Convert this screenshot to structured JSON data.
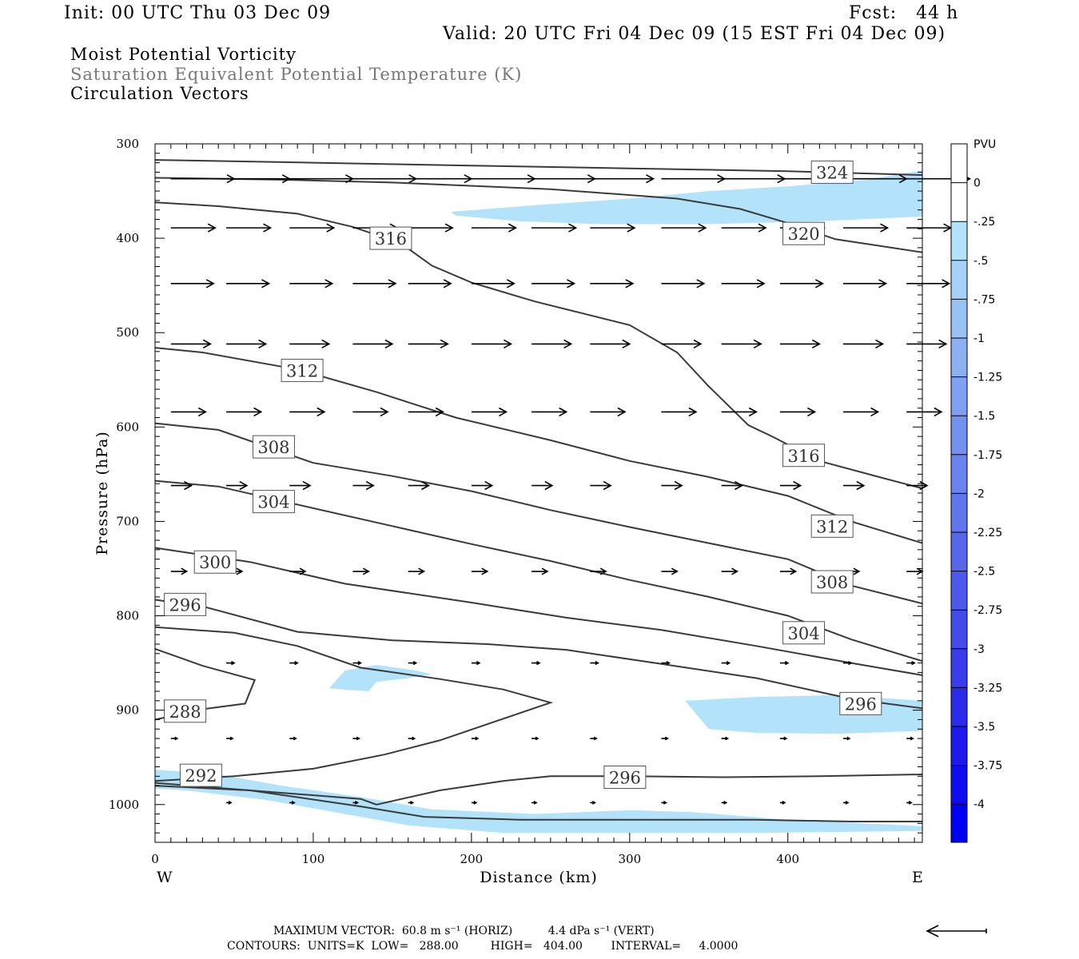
{
  "header": {
    "init": "Init: 00 UTC Thu 03 Dec 09",
    "fcst": "Fcst:   44 h",
    "valid": "Valid: 20 UTC Fri 04 Dec 09 (15 EST Fri 04 Dec 09)",
    "field1": "Moist Potential Vorticity",
    "field2": "Saturation Equivalent Potential Temperature (K)",
    "field3": "Circulation Vectors"
  },
  "footer": {
    "max_vector": "MAXIMUM VECTOR:  60.8 m s⁻¹ (HORIZ)          4.4 dPa s⁻¹ (VERT)",
    "contours": "CONTOURS:  UNITS=K  LOW=   288.00         HIGH=   404.00        INTERVAL=     4.0000"
  },
  "colors": {
    "pv_light": "#b3e3fa",
    "contour": "#3a3a3a",
    "colorbar": [
      "#ffffff",
      "#ffffff",
      "#b3e3fa",
      "#a6d2f7",
      "#99c1f4",
      "#8cb0f1",
      "#7f9ff0",
      "#7591ef",
      "#6b83ee",
      "#6175ec",
      "#5767eb",
      "#4d59ea",
      "#434be9",
      "#383cea",
      "#2b2ceb",
      "#1d1aee",
      "#0f0cf2",
      "#0000f8"
    ]
  },
  "chart_data": {
    "type": "contour",
    "xlabel": "Distance (km)",
    "ylabel": "Pressure (hPa)",
    "xlim": [
      0,
      485
    ],
    "ylim": [
      1040,
      300
    ],
    "x_ticks": [
      "0",
      "100",
      "200",
      "300",
      "400"
    ],
    "y_ticks": [
      "300",
      "400",
      "500",
      "600",
      "700",
      "800",
      "900",
      "1000"
    ],
    "x_left_label": "W",
    "x_right_label": "E",
    "colorbar": {
      "title": "PVU",
      "labels": [
        "0",
        "-.25",
        "-.5",
        "-.75",
        "-1",
        "-1.25",
        "-1.5",
        "-1.75",
        "-2",
        "-2.25",
        "-2.5",
        "-2.75",
        "-3",
        "-3.25",
        "-3.5",
        "-3.75",
        "-4"
      ]
    },
    "contours": [
      {
        "label": "324",
        "points": [
          [
            0,
            317
          ],
          [
            100,
            320
          ],
          [
            200,
            323
          ],
          [
            300,
            326
          ],
          [
            400,
            329
          ],
          [
            485,
            333
          ]
        ]
      },
      {
        "label": "320",
        "points": [
          [
            0,
            336
          ],
          [
            80,
            338
          ],
          [
            150,
            341
          ],
          [
            250,
            348
          ],
          [
            330,
            358
          ],
          [
            370,
            369
          ],
          [
            400,
            384
          ],
          [
            430,
            401
          ],
          [
            485,
            415
          ]
        ]
      },
      {
        "label": "316",
        "points": [
          [
            0,
            362
          ],
          [
            40,
            366
          ],
          [
            90,
            374
          ],
          [
            125,
            388
          ],
          [
            155,
            405
          ],
          [
            175,
            429
          ],
          [
            200,
            447
          ],
          [
            240,
            467
          ],
          [
            300,
            492
          ],
          [
            330,
            521
          ],
          [
            350,
            557
          ],
          [
            375,
            598
          ],
          [
            390,
            610
          ],
          [
            420,
            636
          ],
          [
            460,
            654
          ],
          [
            485,
            665
          ]
        ]
      },
      {
        "label": "312",
        "points": [
          [
            0,
            516
          ],
          [
            30,
            521
          ],
          [
            90,
            539
          ],
          [
            140,
            563
          ],
          [
            190,
            590
          ],
          [
            250,
            614
          ],
          [
            300,
            636
          ],
          [
            350,
            653
          ],
          [
            400,
            673
          ],
          [
            440,
            700
          ],
          [
            485,
            723
          ]
        ]
      },
      {
        "label": "308",
        "points": [
          [
            0,
            596
          ],
          [
            40,
            603
          ],
          [
            100,
            638
          ],
          [
            150,
            652
          ],
          [
            200,
            668
          ],
          [
            250,
            688
          ],
          [
            300,
            706
          ],
          [
            350,
            723
          ],
          [
            400,
            740
          ],
          [
            440,
            768
          ],
          [
            485,
            787
          ]
        ]
      },
      {
        "label": "304",
        "points": [
          [
            0,
            657
          ],
          [
            40,
            663
          ],
          [
            100,
            686
          ],
          [
            150,
            705
          ],
          [
            200,
            724
          ],
          [
            250,
            742
          ],
          [
            300,
            762
          ],
          [
            350,
            780
          ],
          [
            400,
            800
          ],
          [
            440,
            825
          ],
          [
            485,
            848
          ]
        ]
      },
      {
        "label": "300",
        "points": [
          [
            0,
            728
          ],
          [
            60,
            743
          ],
          [
            120,
            766
          ],
          [
            200,
            786
          ],
          [
            260,
            802
          ],
          [
            320,
            815
          ],
          [
            380,
            832
          ],
          [
            440,
            850
          ],
          [
            485,
            863
          ]
        ]
      },
      {
        "label": "296",
        "points": [
          [
            0,
            783
          ],
          [
            30,
            790
          ],
          [
            90,
            817
          ],
          [
            150,
            826
          ],
          [
            210,
            830
          ],
          [
            260,
            836
          ],
          [
            320,
            851
          ],
          [
            380,
            866
          ],
          [
            440,
            888
          ],
          [
            485,
            898
          ]
        ]
      },
      {
        "label": "288",
        "points": [
          [
            0,
            835
          ],
          [
            30,
            853
          ],
          [
            63,
            868
          ],
          [
            57,
            893
          ],
          [
            30,
            899
          ],
          [
            0,
            910
          ]
        ]
      },
      {
        "label": "292",
        "points": [
          [
            0,
            975
          ],
          [
            50,
            970
          ],
          [
            100,
            962
          ],
          [
            145,
            947
          ],
          [
            180,
            932
          ],
          [
            250,
            892
          ],
          [
            220,
            878
          ],
          [
            180,
            867
          ],
          [
            130,
            855
          ],
          [
            90,
            832
          ],
          [
            50,
            818
          ],
          [
            0,
            812
          ]
        ]
      },
      {
        "label": "296",
        "points": [
          [
            0,
            980
          ],
          [
            60,
            985
          ],
          [
            130,
            994
          ],
          [
            140,
            1000
          ],
          [
            180,
            985
          ],
          [
            220,
            975
          ],
          [
            250,
            970
          ],
          [
            300,
            970
          ],
          [
            360,
            971
          ],
          [
            420,
            970
          ],
          [
            485,
            968
          ]
        ]
      },
      {
        "label": "",
        "points": [
          [
            0,
            977
          ],
          [
            60,
            985
          ],
          [
            130,
            1002
          ],
          [
            170,
            1013
          ],
          [
            230,
            1016
          ],
          [
            300,
            1016
          ],
          [
            380,
            1016
          ],
          [
            440,
            1018
          ],
          [
            485,
            1018
          ]
        ]
      }
    ],
    "contour_labels": [
      {
        "text": "324",
        "x": 428,
        "p": 330
      },
      {
        "text": "320",
        "x": 410,
        "p": 395
      },
      {
        "text": "316",
        "x": 149,
        "p": 400
      },
      {
        "text": "316",
        "x": 410,
        "p": 630
      },
      {
        "text": "312",
        "x": 93,
        "p": 540
      },
      {
        "text": "312",
        "x": 428,
        "p": 705
      },
      {
        "text": "308",
        "x": 75,
        "p": 621
      },
      {
        "text": "308",
        "x": 428,
        "p": 764
      },
      {
        "text": "304",
        "x": 75,
        "p": 679
      },
      {
        "text": "304",
        "x": 410,
        "p": 818
      },
      {
        "text": "300",
        "x": 38,
        "p": 743
      },
      {
        "text": "296",
        "x": 19,
        "p": 788
      },
      {
        "text": "296",
        "x": 446,
        "p": 893
      },
      {
        "text": "296",
        "x": 297,
        "p": 971
      },
      {
        "text": "288",
        "x": 19,
        "p": 901
      },
      {
        "text": "292",
        "x": 29,
        "p": 969
      }
    ],
    "pv_regions": [
      {
        "value": -0.25,
        "points": [
          [
            187,
            372
          ],
          [
            240,
            365
          ],
          [
            300,
            358
          ],
          [
            350,
            350
          ],
          [
            400,
            345
          ],
          [
            450,
            338
          ],
          [
            485,
            328
          ],
          [
            485,
            377
          ],
          [
            420,
            382
          ],
          [
            350,
            385
          ],
          [
            280,
            385
          ],
          [
            230,
            382
          ],
          [
            190,
            376
          ]
        ]
      },
      {
        "value": -0.25,
        "points": [
          [
            110,
            877
          ],
          [
            120,
            858
          ],
          [
            140,
            852
          ],
          [
            165,
            858
          ],
          [
            175,
            862
          ],
          [
            160,
            866
          ],
          [
            140,
            870
          ],
          [
            135,
            880
          ]
        ]
      },
      {
        "value": -0.25,
        "points": [
          [
            335,
            890
          ],
          [
            380,
            886
          ],
          [
            430,
            884
          ],
          [
            485,
            890
          ],
          [
            485,
            922
          ],
          [
            430,
            925
          ],
          [
            380,
            924
          ],
          [
            350,
            920
          ]
        ]
      },
      {
        "value": -0.25,
        "points": [
          [
            0,
            963
          ],
          [
            40,
            968
          ],
          [
            80,
            980
          ],
          [
            130,
            992
          ],
          [
            175,
            1005
          ],
          [
            240,
            1010
          ],
          [
            300,
            1006
          ],
          [
            340,
            1008
          ],
          [
            400,
            1016
          ],
          [
            485,
            1023
          ],
          [
            485,
            1028
          ],
          [
            380,
            1030
          ],
          [
            300,
            1030
          ],
          [
            220,
            1030
          ],
          [
            160,
            1022
          ],
          [
            120,
            1010
          ],
          [
            70,
            995
          ],
          [
            20,
            985
          ],
          [
            0,
            983
          ]
        ]
      }
    ],
    "vector_rows": [
      {
        "p": 337,
        "length_km": 40,
        "x": [
          10,
          45,
          85,
          125,
          160,
          200,
          238,
          275,
          320,
          358,
          395,
          435,
          475
        ]
      },
      {
        "p": 389,
        "length_km": 28,
        "x": [
          10,
          45,
          85,
          125,
          160,
          200,
          238,
          275,
          320,
          358,
          395,
          435,
          475
        ]
      },
      {
        "p": 448,
        "length_km": 27,
        "x": [
          10,
          45,
          85,
          125,
          160,
          200,
          238,
          275,
          320,
          358,
          395,
          435,
          475
        ]
      },
      {
        "p": 512,
        "length_km": 25,
        "x": [
          10,
          45,
          85,
          125,
          160,
          200,
          238,
          275,
          320,
          358,
          395,
          435,
          475
        ]
      },
      {
        "p": 584,
        "length_km": 22,
        "x": [
          10,
          45,
          85,
          125,
          160,
          200,
          238,
          275,
          320,
          358,
          395,
          435,
          475
        ]
      },
      {
        "p": 662,
        "length_km": 13,
        "x": [
          10,
          45,
          85,
          125,
          160,
          200,
          238,
          275,
          320,
          358,
          395,
          435,
          475
        ]
      },
      {
        "p": 753,
        "length_km": 10,
        "x": [
          10,
          45,
          85,
          125,
          160,
          200,
          238,
          275,
          320,
          358,
          395,
          435,
          475
        ]
      },
      {
        "p": 850,
        "length_km": 5,
        "x": [
          45,
          85,
          125,
          160,
          200,
          238,
          275,
          320,
          358,
          395,
          435,
          475
        ]
      },
      {
        "p": 930,
        "length_km": 4,
        "x": [
          10,
          45,
          85,
          125,
          160,
          200,
          238,
          275,
          320,
          358,
          395,
          435,
          475
        ]
      },
      {
        "p": 998,
        "length_km": 3,
        "x": [
          45,
          85,
          125,
          160,
          200,
          238,
          275,
          320,
          358,
          395,
          435,
          475
        ]
      }
    ]
  }
}
